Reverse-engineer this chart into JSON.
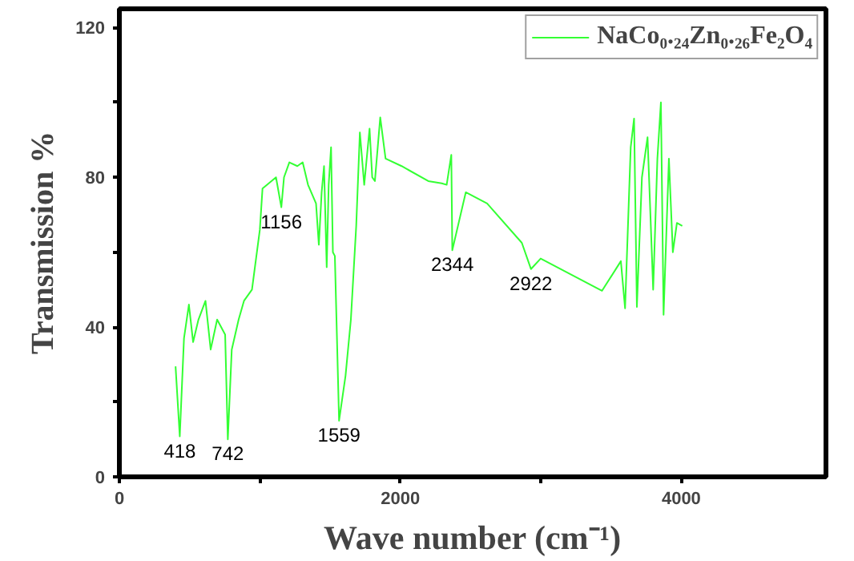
{
  "chart_data": {
    "type": "line",
    "xlabel": "Wave number (cm⁻¹)",
    "ylabel": "Transmission %",
    "xlim": [
      0,
      5030
    ],
    "ylim": [
      0,
      125
    ],
    "xticks": [
      0,
      {
        "value": 1000,
        "label": null
      },
      2000,
      {
        "value": 3000,
        "label": null
      },
      4000
    ],
    "yticks": [
      0,
      {
        "value": 20,
        "label": null
      },
      40,
      {
        "value": 60,
        "label": null
      },
      80,
      {
        "value": 100,
        "label": null
      },
      120
    ],
    "grid": false,
    "legend": "top right",
    "marker": "none",
    "line_style": "solid",
    "series": [
      {
        "name": "NaCo₀.₂₄Zn₀.₂₆Fe₂O₄",
        "color": "#33ff33",
        "x": [
          400,
          430,
          460,
          495,
          525,
          563,
          613,
          650,
          696,
          753,
          772,
          800,
          849,
          887,
          944,
          1000,
          1019,
          1115,
          1153,
          1172,
          1210,
          1267,
          1305,
          1343,
          1400,
          1420,
          1440,
          1457,
          1476,
          1490,
          1507,
          1520,
          1534,
          1564,
          1610,
          1648,
          1686,
          1712,
          1743,
          1781,
          1800,
          1819,
          1857,
          1895,
          2009,
          2199,
          2295,
          2330,
          2363,
          2370,
          2466,
          2618,
          2865,
          2930,
          2999,
          3436,
          3570,
          3600,
          3640,
          3664,
          3684,
          3720,
          3760,
          3800,
          3830,
          3855,
          3874,
          3912,
          3940,
          3969,
          4007
        ],
        "values": [
          29.5,
          10.8,
          37,
          46,
          36,
          42,
          47,
          34,
          42,
          38,
          10,
          34,
          42,
          47,
          50,
          66,
          77,
          80,
          72,
          80,
          84,
          83,
          84,
          78,
          73,
          62,
          76,
          83,
          56,
          78,
          88,
          60,
          59,
          15,
          27,
          42,
          67,
          92,
          78,
          93,
          80,
          79,
          96,
          85,
          83,
          79,
          78.4,
          78,
          86,
          60.5,
          76,
          73,
          62.5,
          55.5,
          58.3,
          49.7,
          57.6,
          45,
          88,
          95.7,
          45.4,
          80,
          90.7,
          50,
          85,
          100,
          43.3,
          85,
          60,
          67.8,
          67
        ]
      }
    ],
    "annotations": [
      {
        "text": "418",
        "x": 430,
        "y": 10.8
      },
      {
        "text": "742",
        "x": 772,
        "y": 10
      },
      {
        "text": "1156",
        "x": 1153,
        "y": 72
      },
      {
        "text": "1559",
        "x": 1564,
        "y": 15
      },
      {
        "text": "2344",
        "x": 2370,
        "y": 60.5
      },
      {
        "text": "2922",
        "x": 2930,
        "y": 55.5
      }
    ]
  }
}
